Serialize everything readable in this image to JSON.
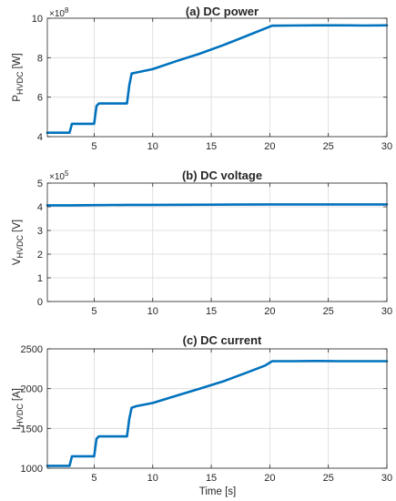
{
  "figure": {
    "series_color": "#0072BD"
  },
  "chart_data": [
    {
      "type": "line",
      "title": "(a) DC power",
      "ylabel_main": "P",
      "ylabel_sub": "HVDC",
      "ylabel_unit": "[W]",
      "xlabel": "",
      "exponent_base": "×10",
      "exponent_power": "8",
      "xlim": [
        1,
        30
      ],
      "ylim": [
        4,
        10
      ],
      "x_ticks": [
        5,
        10,
        15,
        20,
        25,
        30
      ],
      "y_ticks": [
        4,
        6,
        8,
        10
      ],
      "grid": true,
      "series": [
        {
          "x": [
            1,
            2.9,
            3.1,
            5,
            5.2,
            5.4,
            7.8,
            8.0,
            8.2,
            8.6,
            10,
            12,
            14,
            16,
            18,
            19.6,
            20.2,
            22,
            24,
            26,
            28,
            30
          ],
          "y": [
            4.2,
            4.2,
            4.65,
            4.65,
            5.55,
            5.68,
            5.68,
            6.6,
            7.2,
            7.25,
            7.42,
            7.82,
            8.2,
            8.63,
            9.1,
            9.48,
            9.62,
            9.63,
            9.64,
            9.64,
            9.63,
            9.64
          ]
        }
      ]
    },
    {
      "type": "line",
      "title": "(b) DC voltage",
      "ylabel_main": "V",
      "ylabel_sub": "HVDC",
      "ylabel_unit": "[V]",
      "xlabel": "",
      "exponent_base": "×10",
      "exponent_power": "5",
      "xlim": [
        1,
        30
      ],
      "ylim": [
        0,
        5
      ],
      "x_ticks": [
        5,
        10,
        15,
        20,
        25,
        30
      ],
      "y_ticks": [
        0,
        1,
        2,
        3,
        4,
        5
      ],
      "grid": true,
      "series": [
        {
          "x": [
            1,
            3,
            5,
            8,
            10,
            15,
            20,
            25,
            30
          ],
          "y": [
            4.06,
            4.06,
            4.07,
            4.08,
            4.08,
            4.09,
            4.1,
            4.1,
            4.1
          ]
        }
      ]
    },
    {
      "type": "line",
      "title": "(c) DC current",
      "ylabel_main": "I",
      "ylabel_sub": "HVDC",
      "ylabel_unit": "[A]",
      "xlabel": "Time [s]",
      "exponent_base": "",
      "exponent_power": "",
      "xlim": [
        1,
        30
      ],
      "ylim": [
        1000,
        2500
      ],
      "x_ticks": [
        5,
        10,
        15,
        20,
        25,
        30
      ],
      "y_ticks": [
        1000,
        1500,
        2000,
        2500
      ],
      "grid": true,
      "series": [
        {
          "x": [
            1,
            2.9,
            3.1,
            5,
            5.2,
            5.4,
            7.8,
            8.0,
            8.2,
            8.6,
            10,
            12,
            14,
            16,
            18,
            19.6,
            20.2,
            22,
            24,
            26,
            28,
            30
          ],
          "y": [
            1030,
            1030,
            1150,
            1150,
            1370,
            1400,
            1400,
            1620,
            1760,
            1780,
            1820,
            1910,
            2000,
            2090,
            2200,
            2290,
            2345,
            2345,
            2348,
            2345,
            2345,
            2345
          ]
        }
      ]
    }
  ]
}
